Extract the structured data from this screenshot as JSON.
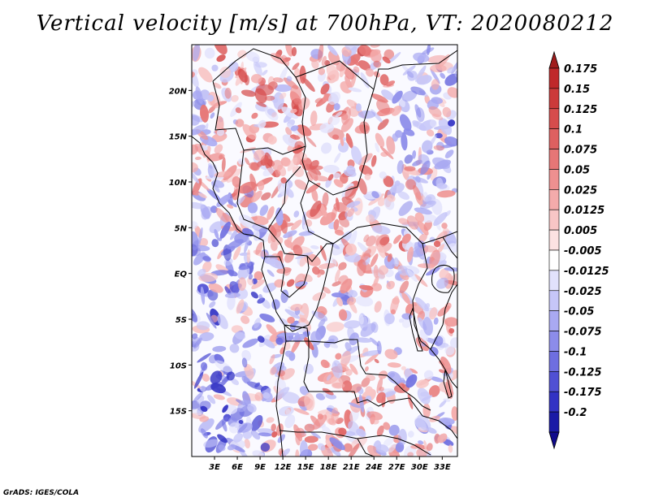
{
  "title": "Vertical velocity [m/s] at 700hPa, VT: 2020080212",
  "credit": "GrADS: IGES/COLA",
  "map": {
    "projection": "lat-lon",
    "lon_range": [
      0,
      35
    ],
    "lat_range": [
      -20,
      25
    ],
    "lat_ticks": [
      {
        "value": 20,
        "label": "20N"
      },
      {
        "value": 15,
        "label": "15N"
      },
      {
        "value": 10,
        "label": "10N"
      },
      {
        "value": 5,
        "label": "5N"
      },
      {
        "value": 0,
        "label": "EQ"
      },
      {
        "value": -5,
        "label": "5S"
      },
      {
        "value": -10,
        "label": "10S"
      },
      {
        "value": -15,
        "label": "15S"
      }
    ],
    "lon_ticks": [
      {
        "value": 3,
        "label": "3E"
      },
      {
        "value": 6,
        "label": "6E"
      },
      {
        "value": 9,
        "label": "9E"
      },
      {
        "value": 12,
        "label": "12E"
      },
      {
        "value": 15,
        "label": "15E"
      },
      {
        "value": 18,
        "label": "18E"
      },
      {
        "value": 21,
        "label": "21E"
      },
      {
        "value": 24,
        "label": "24E"
      },
      {
        "value": 27,
        "label": "27E"
      },
      {
        "value": 30,
        "label": "30E"
      },
      {
        "value": 33,
        "label": "33E"
      }
    ]
  },
  "colorbar": {
    "levels": [
      {
        "label": "0.175",
        "color": "#c0282a"
      },
      {
        "label": "0.15",
        "color": "#cc3a3a"
      },
      {
        "label": "0.125",
        "color": "#d64c4c"
      },
      {
        "label": "0.1",
        "color": "#de6060"
      },
      {
        "label": "0.075",
        "color": "#e67676"
      },
      {
        "label": "0.05",
        "color": "#ee9090"
      },
      {
        "label": "0.025",
        "color": "#f4abab"
      },
      {
        "label": "0.0125",
        "color": "#f8c6c6"
      },
      {
        "label": "0.005",
        "color": "#fce2e2"
      },
      {
        "label": "-0.005",
        "color": "#ffffff"
      },
      {
        "label": "-0.0125",
        "color": "#e2e2fc"
      },
      {
        "label": "-0.025",
        "color": "#c6c6f8"
      },
      {
        "label": "-0.05",
        "color": "#a9a9f2"
      },
      {
        "label": "-0.075",
        "color": "#8c8cea"
      },
      {
        "label": "-0.1",
        "color": "#6e6ee0"
      },
      {
        "label": "-0.125",
        "color": "#5050d4"
      },
      {
        "label": "-0.175",
        "color": "#3232c4"
      },
      {
        "label": "-0.2",
        "color": "#1a1aa6"
      }
    ],
    "top_color": "#a01c1c",
    "bottom_color": "#100a8c"
  }
}
